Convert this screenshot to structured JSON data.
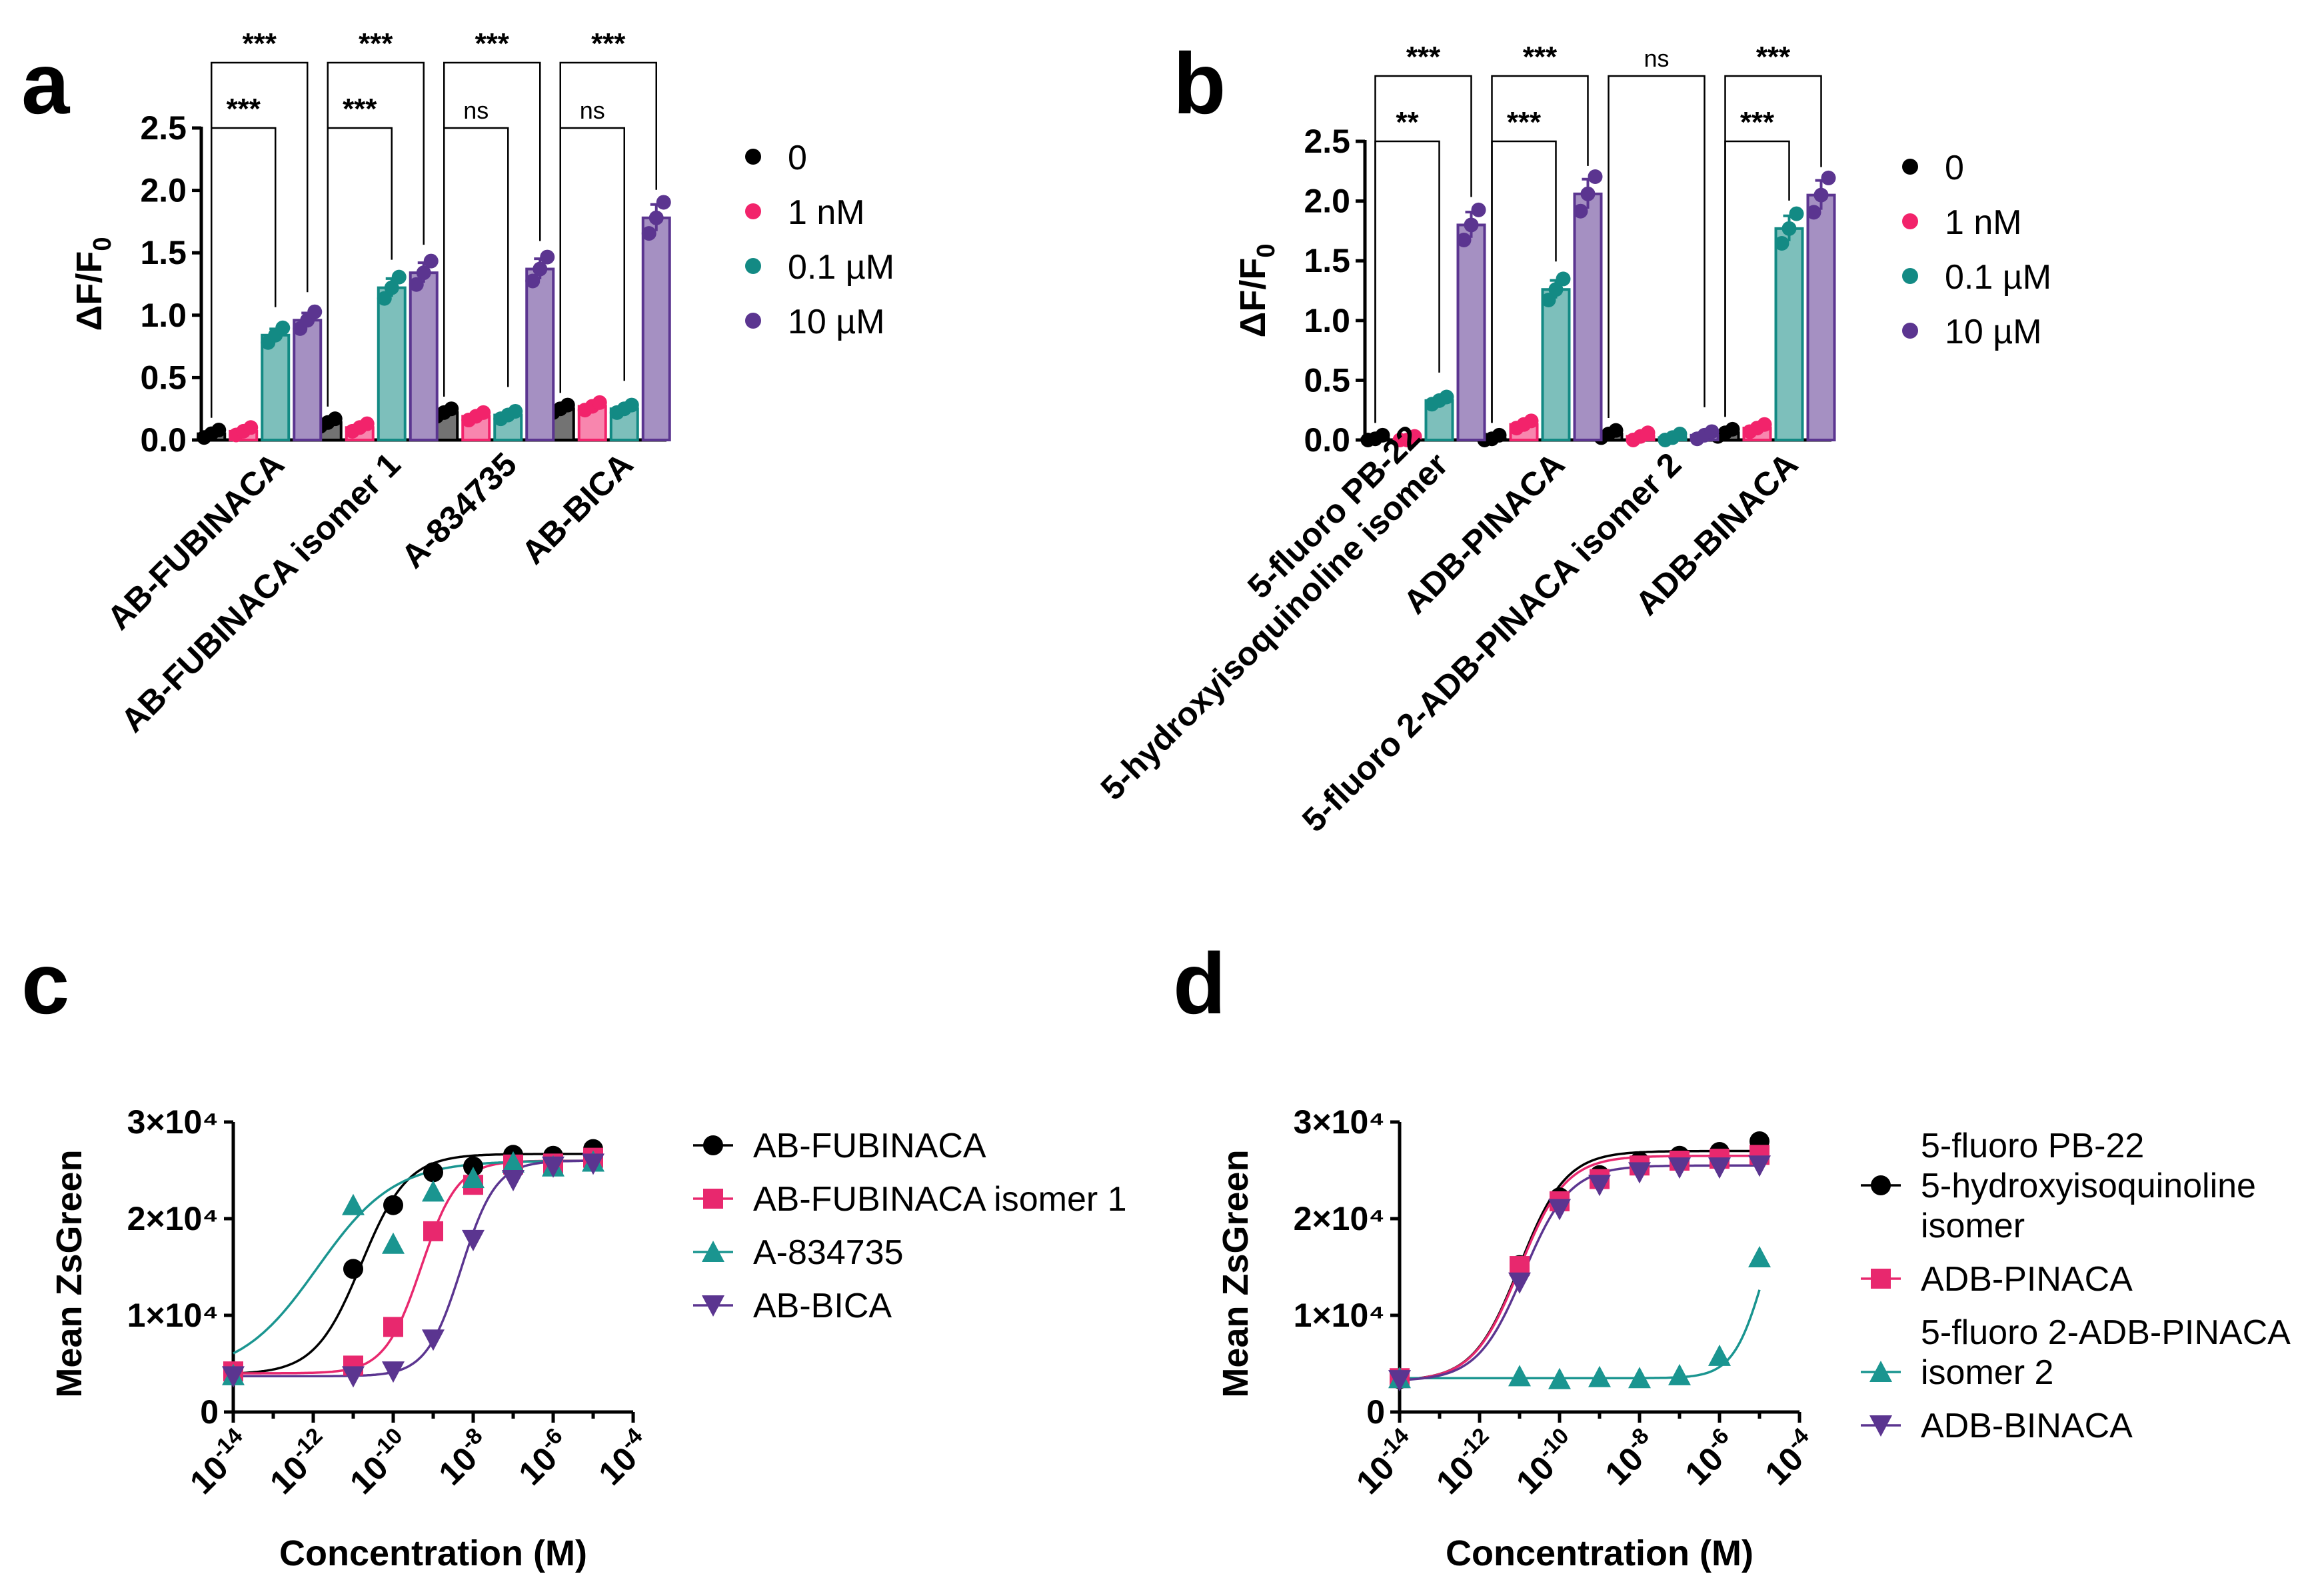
{
  "figure": {
    "panel_labels": [
      "a",
      "b",
      "c",
      "d"
    ]
  },
  "chart_data": [
    {
      "panel": "a",
      "type": "bar",
      "ylabel": "ΔF/F₀",
      "ylabel_base": "ΔF/F",
      "ylabel_sub": "0",
      "ylim": [
        0,
        2.5
      ],
      "yticks": [
        "0.0",
        "0.5",
        "1.0",
        "1.5",
        "2.0",
        "2.5"
      ],
      "categories": [
        "AB-FUBINACA",
        "AB-FUBINACA isomer 1",
        "A-834735",
        "AB-BICA"
      ],
      "series": [
        {
          "name": "0",
          "color": "#000000",
          "values": [
            0.05,
            0.14,
            0.22,
            0.25
          ]
        },
        {
          "name": "1 nM",
          "color": "#f2236b",
          "values": [
            0.07,
            0.1,
            0.19,
            0.27
          ]
        },
        {
          "name": "0.1 µM",
          "color": "#138a84",
          "values": [
            0.84,
            1.22,
            0.2,
            0.25
          ]
        },
        {
          "name": "10 µM",
          "color": "#5b3590",
          "values": [
            0.96,
            1.34,
            1.37,
            1.78
          ]
        }
      ],
      "comparisons": [
        {
          "group": 0,
          "target": 2,
          "label": "***"
        },
        {
          "group": 0,
          "target": 3,
          "label": "***"
        },
        {
          "group": 1,
          "target": 2,
          "label": "***"
        },
        {
          "group": 1,
          "target": 3,
          "label": "***"
        },
        {
          "group": 2,
          "target": 2,
          "label": "ns"
        },
        {
          "group": 2,
          "target": 3,
          "label": "***"
        },
        {
          "group": 3,
          "target": 2,
          "label": "ns"
        },
        {
          "group": 3,
          "target": 3,
          "label": "***"
        }
      ]
    },
    {
      "panel": "b",
      "type": "bar",
      "ylabel": "ΔF/F₀",
      "ylabel_base": "ΔF/F",
      "ylabel_sub": "0",
      "ylim": [
        0,
        2.5
      ],
      "yticks": [
        "0.0",
        "0.5",
        "1.0",
        "1.5",
        "2.0",
        "2.5"
      ],
      "categories": [
        "5-fluoro PB-22 5-hydroxyisoquinoline isomer",
        "ADB-PINACA",
        "5-fluoro 2-ADB-PINACA isomer 2",
        "ADB-BINACA"
      ],
      "category_lines": [
        [
          "5-fluoro PB-22",
          "5-hydroxyisoquinoline isomer"
        ],
        [
          "ADB-PINACA"
        ],
        [
          "5-fluoro 2-ADB-PINACA isomer 2"
        ],
        [
          "ADB-BINACA"
        ]
      ],
      "series": [
        {
          "name": "0",
          "color": "#000000",
          "values": [
            0.01,
            0.01,
            0.05,
            0.06
          ]
        },
        {
          "name": "1 nM",
          "color": "#f2236b",
          "values": [
            0.0,
            0.13,
            0.03,
            0.1
          ]
        },
        {
          "name": "0.1 µM",
          "color": "#138a84",
          "values": [
            0.33,
            1.26,
            0.02,
            1.77
          ]
        },
        {
          "name": "10 µM",
          "color": "#5b3590",
          "values": [
            1.8,
            2.06,
            0.04,
            2.05
          ]
        }
      ],
      "comparisons": [
        {
          "group": 0,
          "target": 2,
          "label": "**"
        },
        {
          "group": 0,
          "target": 3,
          "label": "***"
        },
        {
          "group": 1,
          "target": 2,
          "label": "***"
        },
        {
          "group": 1,
          "target": 3,
          "label": "***"
        },
        {
          "group": 2,
          "target": 3,
          "label": "ns"
        },
        {
          "group": 3,
          "target": 2,
          "label": "***"
        },
        {
          "group": 3,
          "target": 3,
          "label": "***"
        }
      ]
    },
    {
      "panel": "c",
      "type": "scatter",
      "xscale": "log",
      "xlabel": "Concentration (M)",
      "ylabel": "Mean ZsGreen",
      "xlim_exp": [
        -14,
        -4
      ],
      "xtick_exps": [
        "-14",
        "-12",
        "-10",
        "-8",
        "-6",
        "-4"
      ],
      "ylim": [
        0,
        30000
      ],
      "yticks": [
        "0",
        "1×10⁴",
        "2×10⁴",
        "3×10⁴"
      ],
      "series": [
        {
          "name": "AB-FUBINACA",
          "marker": "circle",
          "color": "#000000",
          "x_exp": [
            -14,
            -11,
            -10,
            -9,
            -8,
            -7,
            -6,
            -5
          ],
          "y": [
            3900,
            14800,
            21400,
            24800,
            25400,
            26600,
            26500,
            27200
          ],
          "fit": {
            "bottom": 3900,
            "top": 26700,
            "logEC50": -10.8,
            "hill": 0.75
          }
        },
        {
          "name": "AB-FUBINACA isomer 1",
          "marker": "square",
          "color": "#e8286e",
          "x_exp": [
            -14,
            -11,
            -10,
            -9,
            -8,
            -7,
            -6,
            -5
          ],
          "y": [
            4200,
            4800,
            8800,
            18700,
            23500,
            25600,
            25700,
            26300
          ],
          "fit": {
            "bottom": 4000,
            "top": 26000,
            "logEC50": -9.3,
            "hill": 0.95
          }
        },
        {
          "name": "A-834735",
          "marker": "triangle-up",
          "color": "#1a9590",
          "x_exp": [
            -14,
            -11,
            -10,
            -9,
            -8,
            -7,
            -6,
            -5
          ],
          "y": [
            3800,
            21400,
            17400,
            22800,
            24200,
            25800,
            25400,
            25900
          ],
          "fit": {
            "bottom": 3800,
            "top": 26000,
            "logEC50": -11.9,
            "hill": 0.45
          }
        },
        {
          "name": "AB-BICA",
          "marker": "triangle-down",
          "color": "#5b3590",
          "x_exp": [
            -14,
            -11,
            -10,
            -9,
            -8,
            -7,
            -6,
            -5
          ],
          "y": [
            3700,
            3700,
            4200,
            7500,
            17800,
            24000,
            25400,
            25700
          ],
          "fit": {
            "bottom": 3700,
            "top": 26000,
            "logEC50": -8.3,
            "hill": 1.0
          }
        }
      ]
    },
    {
      "panel": "d",
      "type": "scatter",
      "xscale": "log",
      "xlabel": "Concentration (M)",
      "ylabel": "Mean ZsGreen",
      "xlim_exp": [
        -14,
        -4
      ],
      "xtick_exps": [
        "-14",
        "-12",
        "-10",
        "-8",
        "-6",
        "-4"
      ],
      "ylim": [
        0,
        30000
      ],
      "yticks": [
        "0",
        "1×10⁴",
        "2×10⁴",
        "3×10⁴"
      ],
      "series": [
        {
          "name": "5-fluoro PB-22 5-hydroxyisoquinoline isomer",
          "legend_lines": [
            "5-fluoro PB-22",
            "5-hydroxyisoquinoline",
            "isomer"
          ],
          "marker": "circle",
          "color": "#000000",
          "x_exp": [
            -14,
            -11,
            -10,
            -9,
            -8,
            -7,
            -6,
            -5
          ],
          "y": [
            3400,
            15200,
            22200,
            24500,
            25900,
            26500,
            26900,
            28000
          ],
          "fit": {
            "bottom": 3200,
            "top": 27000,
            "logEC50": -11.0,
            "hill": 0.75
          }
        },
        {
          "name": "ADB-PINACA",
          "legend_lines": [
            "ADB-PINACA"
          ],
          "marker": "square",
          "color": "#e8286e",
          "x_exp": [
            -14,
            -11,
            -10,
            -9,
            -8,
            -7,
            -6,
            -5
          ],
          "y": [
            3500,
            15100,
            21800,
            24100,
            25500,
            26000,
            26200,
            26600
          ],
          "fit": {
            "bottom": 3200,
            "top": 26500,
            "logEC50": -11.0,
            "hill": 0.75
          }
        },
        {
          "name": "5-fluoro 2-ADB-PINACA isomer 2",
          "legend_lines": [
            "5-fluoro 2-ADB-PINACA",
            "isomer 2"
          ],
          "marker": "triangle-up",
          "color": "#1a9590",
          "x_exp": [
            -14,
            -11,
            -10,
            -9,
            -8,
            -7,
            -6,
            -5
          ],
          "y": [
            3500,
            3700,
            3400,
            3600,
            3500,
            3800,
            5800,
            16000
          ],
          "fit": {
            "bottom": 3500,
            "top": 26000,
            "logEC50": -4.85,
            "hill": 1.1
          }
        },
        {
          "name": "ADB-BINACA",
          "legend_lines": [
            "ADB-BINACA"
          ],
          "marker": "triangle-down",
          "color": "#5b3590",
          "x_exp": [
            -14,
            -11,
            -10,
            -9,
            -8,
            -7,
            -6,
            -5
          ],
          "y": [
            3300,
            13400,
            21000,
            23500,
            24800,
            25300,
            25300,
            25500
          ],
          "fit": {
            "bottom": 3200,
            "top": 25500,
            "logEC50": -10.9,
            "hill": 0.75
          }
        }
      ]
    }
  ]
}
